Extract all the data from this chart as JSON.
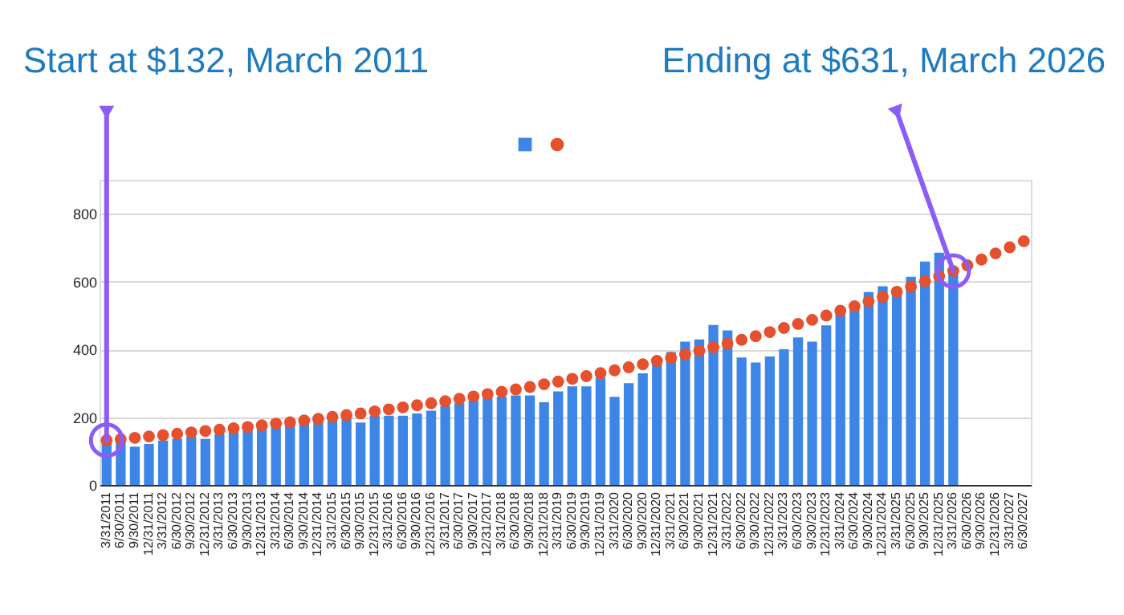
{
  "chart_data": {
    "type": "bar",
    "categories": [
      "3/31/2011",
      "6/30/2011",
      "9/30/2011",
      "12/31/2011",
      "3/31/2012",
      "6/30/2012",
      "9/30/2012",
      "12/31/2012",
      "3/31/2013",
      "6/30/2013",
      "9/30/2013",
      "12/31/2013",
      "3/31/2014",
      "6/30/2014",
      "9/30/2014",
      "12/31/2014",
      "3/31/2015",
      "6/30/2015",
      "9/30/2015",
      "12/31/2015",
      "3/31/2016",
      "6/30/2016",
      "9/30/2016",
      "12/31/2016",
      "3/31/2017",
      "6/30/2017",
      "9/30/2017",
      "12/31/2017",
      "3/31/2018",
      "6/30/2018",
      "9/30/2018",
      "12/31/2018",
      "3/31/2019",
      "6/30/2019",
      "9/30/2019",
      "12/31/2019",
      "3/31/2020",
      "6/30/2020",
      "9/30/2020",
      "12/31/2020",
      "3/31/2021",
      "6/30/2021",
      "9/30/2021",
      "12/31/2021",
      "3/31/2022",
      "6/30/2022",
      "9/30/2022",
      "12/31/2022",
      "3/31/2023",
      "6/30/2023",
      "9/30/2023",
      "12/31/2023",
      "3/31/2024",
      "6/30/2024",
      "9/30/2024",
      "12/31/2024",
      "3/31/2025",
      "6/30/2025",
      "9/30/2025",
      "12/31/2025",
      "3/31/2026",
      "6/30/2026",
      "9/30/2026",
      "12/31/2026",
      "3/31/2027",
      "6/30/2027"
    ],
    "series": [
      {
        "color": "#3d85e6",
        "values": [
          128,
          136,
          113,
          121,
          131,
          136,
          143,
          136,
          151,
          158,
          163,
          169,
          174,
          178,
          184,
          189,
          196,
          196,
          184,
          204,
          204,
          204,
          211,
          219,
          234,
          241,
          249,
          257,
          260,
          264,
          264,
          244,
          276,
          291,
          291,
          317,
          260,
          300,
          329,
          359,
          392,
          423,
          429,
          472,
          456,
          376,
          361,
          379,
          400,
          435,
          423,
          471,
          506,
          519,
          569,
          586,
          566,
          614,
          659,
          685,
          630,
          null,
          null,
          null,
          null,
          null
        ]
      },
      {
        "type": "scatter",
        "color": "#e5512e",
        "values": [
          132,
          135,
          139,
          143,
          147,
          151,
          155,
          159,
          163,
          167,
          171,
          176,
          181,
          185,
          190,
          195,
          201,
          206,
          211,
          217,
          223,
          229,
          235,
          241,
          247,
          254,
          261,
          268,
          275,
          282,
          289,
          297,
          305,
          313,
          321,
          330,
          338,
          347,
          356,
          366,
          375,
          385,
          396,
          406,
          417,
          428,
          439,
          451,
          463,
          475,
          487,
          500,
          514,
          527,
          541,
          555,
          570,
          585,
          601,
          616,
          631,
          648,
          665,
          683,
          701,
          719
        ]
      }
    ],
    "ylim": [
      0,
      900
    ],
    "yticks": [
      0,
      200,
      400,
      600,
      800
    ],
    "grid": "y",
    "marker": "circle",
    "annotations": [
      {
        "text": "Start at $132, March 2011",
        "x": "3/31/2011",
        "y": 132
      },
      {
        "text": "Ending at $631, March 2026",
        "x": "3/31/2026",
        "y": 631
      }
    ]
  }
}
